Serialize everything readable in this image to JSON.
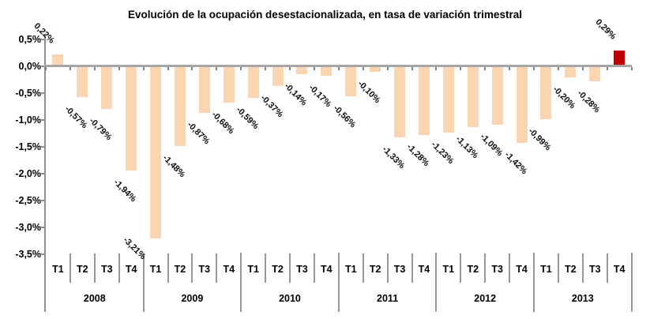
{
  "chart_data": {
    "type": "bar",
    "title": "Evolución de la ocupación desestacionalizada, en tasa de variación trimestral",
    "xlabel": "",
    "ylabel": "",
    "ylim": [
      -3.5,
      0.5
    ],
    "grid": false,
    "legend": null,
    "years": [
      {
        "label": "2008",
        "quarters": [
          "T1",
          "T2",
          "T3",
          "T4"
        ],
        "values": [
          0.22,
          -0.57,
          -0.79,
          -1.94
        ]
      },
      {
        "label": "2009",
        "quarters": [
          "T1",
          "T2",
          "T3",
          "T4"
        ],
        "values": [
          -3.21,
          -1.48,
          -0.87,
          -0.68
        ]
      },
      {
        "label": "2010",
        "quarters": [
          "T1",
          "T2",
          "T3",
          "T4"
        ],
        "values": [
          -0.59,
          -0.37,
          -0.14,
          -0.17
        ]
      },
      {
        "label": "2011",
        "quarters": [
          "T1",
          "T2",
          "T3",
          "T4"
        ],
        "values": [
          -0.56,
          -0.1,
          -1.33,
          -1.28
        ]
      },
      {
        "label": "2012",
        "quarters": [
          "T1",
          "T2",
          "T3",
          "T4"
        ],
        "values": [
          -1.23,
          -1.13,
          -1.09,
          -1.42
        ]
      },
      {
        "label": "2013",
        "quarters": [
          "T1",
          "T2",
          "T3",
          "T4"
        ],
        "values": [
          -0.99,
          -0.2,
          -0.28,
          0.29
        ]
      }
    ],
    "point_labels": [
      "0,22%",
      "-0,57%",
      "-0,79%",
      "-1,94%",
      "-3,21%",
      "-1,48%",
      "-0,87%",
      "-0,68%",
      "-0,59%",
      "-0,37%",
      "-0,14%",
      "-0,17%",
      "-0,56%",
      "-0,10%",
      "-1,33%",
      "-1,28%",
      "-1,23%",
      "-1,13%",
      "-1,09%",
      "-1,42%",
      "-0,99%",
      "-0,20%",
      "-0,28%",
      "0,29%"
    ],
    "highlight_index": 23,
    "y_axis": {
      "ticks": [
        "0,5%",
        "0,0%",
        "-0,5%",
        "-1,0%",
        "-1,5%",
        "-2,0%",
        "-2,5%",
        "-3,0%",
        "-3,5%"
      ],
      "tick_values": [
        0.5,
        0.0,
        -0.5,
        -1.0,
        -1.5,
        -2.0,
        -2.5,
        -3.0,
        -3.5
      ]
    },
    "colors": {
      "bar": "#FBD5B2",
      "highlight": "#C00000",
      "axis": "#A6A6A6",
      "separator": "#969696",
      "tick": "#7F7F7F",
      "text": "#000000"
    }
  }
}
